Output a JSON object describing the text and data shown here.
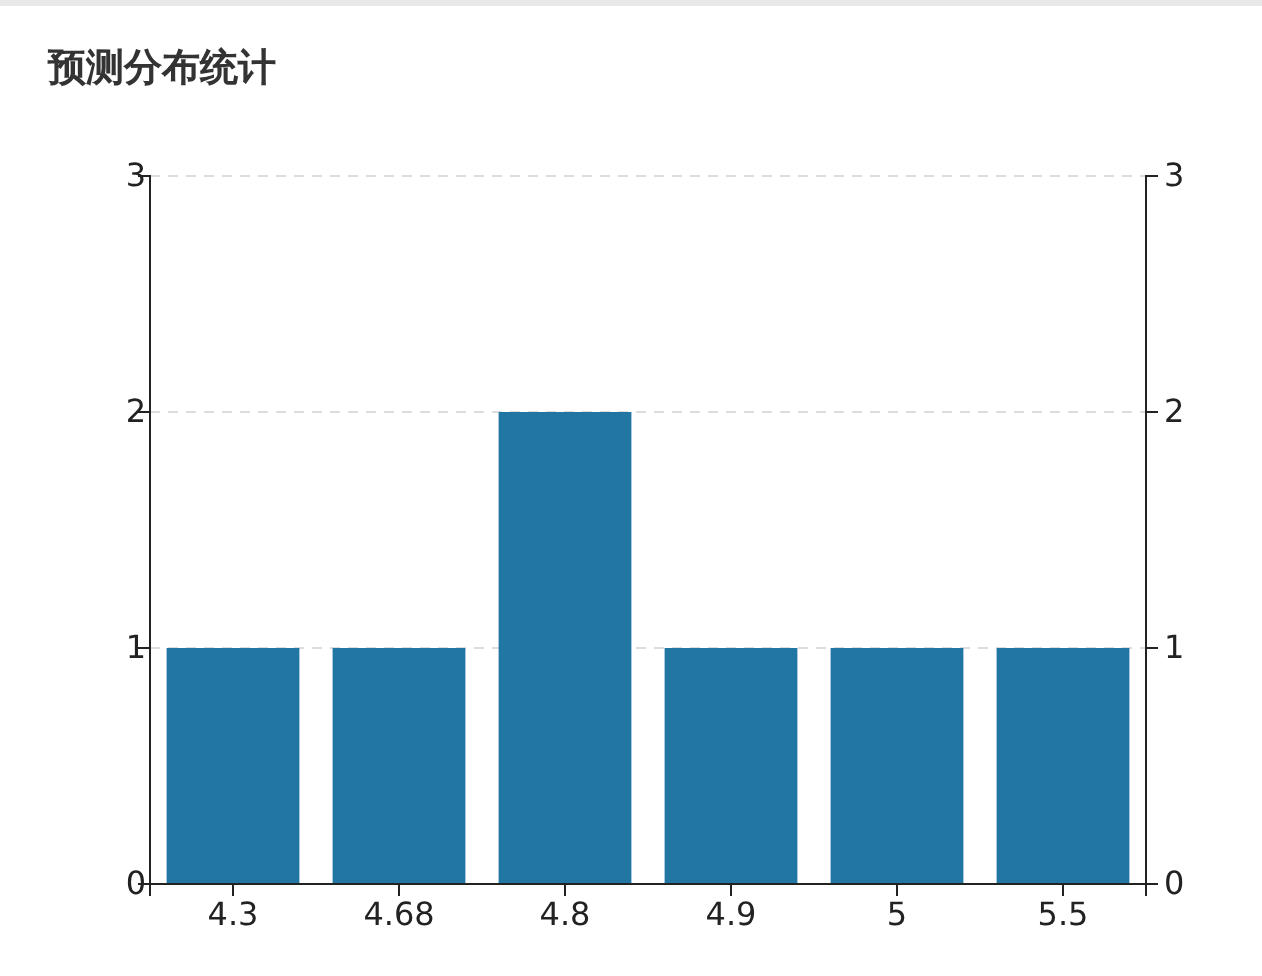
{
  "chart_data": {
    "type": "bar",
    "title": "预测分布统计",
    "categories": [
      "4.3",
      "4.68",
      "4.8",
      "4.9",
      "5",
      "5.5"
    ],
    "values": [
      1,
      1,
      2,
      1,
      1,
      1
    ],
    "color": "#2176a3",
    "ylim": [
      0,
      3
    ],
    "yticks": [
      0,
      1,
      2,
      3
    ],
    "y2lim": [
      0,
      3
    ],
    "y2ticks": [
      0,
      1,
      2,
      3
    ],
    "grid": "y"
  }
}
